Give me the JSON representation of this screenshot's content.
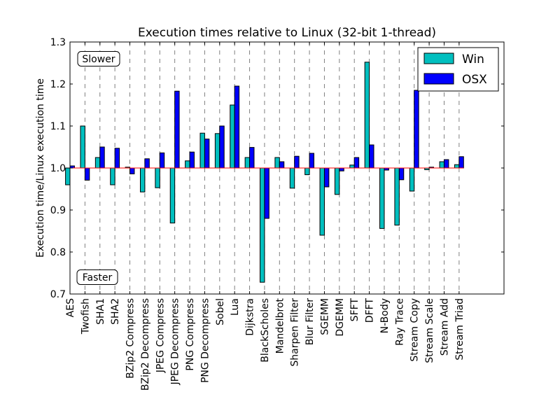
{
  "chart_data": {
    "type": "bar",
    "title": "Execution times relative to Linux (32-bit 1-thread)",
    "xlabel": "",
    "ylabel": "Execution time/Linux execution time",
    "ylim": [
      0.7,
      1.3
    ],
    "yticks": [
      "0.7",
      "0.8",
      "0.9",
      "1.0",
      "1.1",
      "1.2",
      "1.3"
    ],
    "baseline": 1.0,
    "grid": "vertical dashed",
    "legend_position": "top-right",
    "annotations": {
      "slower": "Slower",
      "faster": "Faster"
    },
    "categories": [
      "AES",
      "Twofish",
      "SHA1",
      "SHA2",
      "BZip2 Compress",
      "BZip2 Decompress",
      "JPEG Compress",
      "JPEG Decompress",
      "PNG Compress",
      "PNG Decompress",
      "Sobel",
      "Lua",
      "Dijkstra",
      "BlackScholes",
      "Mandelbrot",
      "Sharpen Filter",
      "Blur Filter",
      "SGEMM",
      "DGEMM",
      "SFFT",
      "DFFT",
      "N-Body",
      "Ray Trace",
      "Stream Copy",
      "Stream Scale",
      "Stream Add",
      "Stream Triad"
    ],
    "series": [
      {
        "name": "Win",
        "color": "#00bfbf",
        "values": [
          0.96,
          1.1,
          1.025,
          0.96,
          1.002,
          0.943,
          0.953,
          0.869,
          1.017,
          1.083,
          1.082,
          1.15,
          1.025,
          0.728,
          1.025,
          0.952,
          0.984,
          0.84,
          0.937,
          1.007,
          1.252,
          0.856,
          0.864,
          0.945,
          0.996,
          1.015,
          1.008
        ]
      },
      {
        "name": "OSX",
        "color": "#0000ff",
        "values": [
          1.005,
          0.971,
          1.05,
          1.047,
          0.986,
          1.022,
          1.036,
          1.183,
          1.038,
          1.069,
          1.1,
          1.195,
          1.049,
          0.88,
          1.015,
          1.028,
          1.035,
          0.955,
          0.993,
          1.025,
          1.055,
          0.995,
          0.972,
          1.185,
          1.002,
          1.02,
          1.027
        ]
      }
    ]
  }
}
